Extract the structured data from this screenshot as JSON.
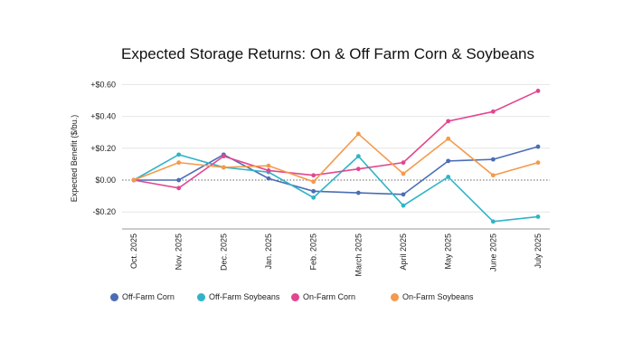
{
  "chart_data": {
    "type": "line",
    "title": "Expected Storage Returns: On & Off Farm Corn & Soybeans",
    "ylabel": "Expected Benefit ($/bu.)",
    "xlabel": "",
    "categories": [
      "Oct. 2025",
      "Nov. 2025",
      "Dec. 2025",
      "Jan. 2025",
      "Feb. 2025",
      "March 2025",
      "April 2025",
      "May 2025",
      "June 2025",
      "July 2025"
    ],
    "yticks": [
      0.6,
      0.4,
      0.2,
      0.0,
      -0.2
    ],
    "ytick_labels": [
      "+$0.60",
      "+$0.40",
      "+$0.20",
      "$0.00",
      "-$0.20"
    ],
    "ylim": [
      -0.3,
      0.65
    ],
    "grid": true,
    "zero_line": "dotted",
    "legend_position": "bottom",
    "series": [
      {
        "name": "Off-Farm Corn",
        "color": "#4a6db5",
        "values": [
          0,
          0,
          0.16,
          0.01,
          -0.07,
          -0.08,
          -0.09,
          0.12,
          0.13,
          0.21
        ]
      },
      {
        "name": "Off-Farm Soybeans",
        "color": "#2fb4c6",
        "values": [
          0,
          0.16,
          0.08,
          0.05,
          -0.11,
          0.15,
          -0.16,
          0.02,
          -0.26,
          -0.23
        ]
      },
      {
        "name": "On-Farm Corn",
        "color": "#e2468f",
        "values": [
          0,
          -0.05,
          0.15,
          0.06,
          0.03,
          0.07,
          0.11,
          0.37,
          0.43,
          0.56
        ]
      },
      {
        "name": "On-Farm Soybeans",
        "color": "#f39a4b",
        "values": [
          0,
          0.11,
          0.08,
          0.09,
          -0.01,
          0.29,
          0.04,
          0.26,
          0.03,
          0.11
        ]
      }
    ]
  }
}
